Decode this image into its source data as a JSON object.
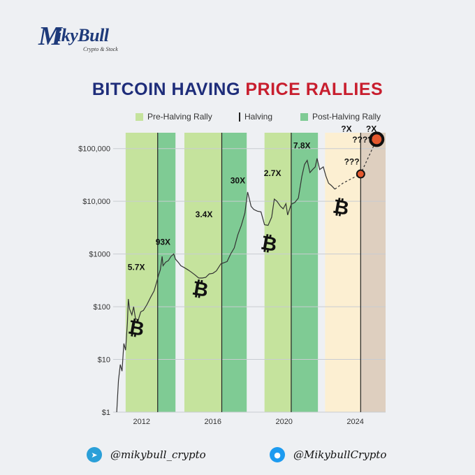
{
  "brand": {
    "name": "MikyBull",
    "tagline": "Crypto & Stock"
  },
  "title_part1": "BITCOIN HAVING",
  "title_part2": "PRICE RALLIES",
  "legend": {
    "pre": "Pre-Halving Rally",
    "halving": "Halving",
    "post": "Post-Halving Rally"
  },
  "colors": {
    "pre": "#c5e39d",
    "post": "#7fcb94",
    "future_pre": "#fcefd2",
    "future_post": "#decfbf",
    "halving_line": "#222222",
    "price_line": "#333333",
    "marker": "#e4582e"
  },
  "footer": {
    "telegram_icon": "telegram-icon",
    "telegram": "@mikybull_crypto",
    "twitter_icon": "twitter-icon",
    "twitter": "@MikybullCrypto"
  },
  "chart_data": {
    "type": "line",
    "title": "BITCOIN HAVING PRICE RALLIES",
    "y_scale": "log",
    "ylim": [
      1,
      200000
    ],
    "xlim": [
      2010.4,
      2025.7
    ],
    "y_ticks": [
      {
        "value": 1,
        "label": "$1"
      },
      {
        "value": 10,
        "label": "$10"
      },
      {
        "value": 100,
        "label": "$100"
      },
      {
        "value": 1000,
        "label": "$1000"
      },
      {
        "value": 10000,
        "label": "$10,000"
      },
      {
        "value": 100000,
        "label": "$100,000"
      }
    ],
    "x_ticks": [
      {
        "value": 2012,
        "label": "2012"
      },
      {
        "value": 2016,
        "label": "2016"
      },
      {
        "value": 2020,
        "label": "2020"
      },
      {
        "value": 2024,
        "label": "2024"
      }
    ],
    "grid": true,
    "halvings": [
      2012.9,
      2016.5,
      2020.4,
      2024.3
    ],
    "bands": [
      {
        "kind": "pre",
        "x0": 2011.1,
        "x1": 2012.9
      },
      {
        "kind": "post",
        "x0": 2012.9,
        "x1": 2013.9
      },
      {
        "kind": "pre",
        "x0": 2014.4,
        "x1": 2016.5
      },
      {
        "kind": "post",
        "x0": 2016.5,
        "x1": 2017.9
      },
      {
        "kind": "pre",
        "x0": 2018.9,
        "x1": 2020.4
      },
      {
        "kind": "post",
        "x0": 2020.4,
        "x1": 2021.9
      },
      {
        "kind": "future_pre",
        "x0": 2022.3,
        "x1": 2024.3
      },
      {
        "kind": "future_post",
        "x0": 2024.3,
        "x1": 2025.7
      }
    ],
    "series": [
      {
        "points": [
          [
            2010.6,
            1
          ],
          [
            2010.7,
            4
          ],
          [
            2010.8,
            8
          ],
          [
            2010.9,
            6
          ],
          [
            2011.0,
            20
          ],
          [
            2011.1,
            15
          ],
          [
            2011.2,
            50
          ],
          [
            2011.25,
            140
          ],
          [
            2011.32,
            90
          ],
          [
            2011.45,
            70
          ],
          [
            2011.55,
            100
          ],
          [
            2011.65,
            60
          ],
          [
            2011.8,
            55
          ],
          [
            2011.95,
            80
          ],
          [
            2012.1,
            85
          ],
          [
            2012.3,
            110
          ],
          [
            2012.5,
            150
          ],
          [
            2012.7,
            200
          ],
          [
            2012.85,
            300
          ],
          [
            2012.95,
            400
          ],
          [
            2013.05,
            500
          ],
          [
            2013.15,
            900
          ],
          [
            2013.2,
            600
          ],
          [
            2013.35,
            700
          ],
          [
            2013.5,
            750
          ],
          [
            2013.65,
            900
          ],
          [
            2013.8,
            1000
          ],
          [
            2013.9,
            800
          ],
          [
            2014.05,
            700
          ],
          [
            2014.2,
            600
          ],
          [
            2014.4,
            550
          ],
          [
            2014.6,
            500
          ],
          [
            2014.8,
            450
          ],
          [
            2015.0,
            400
          ],
          [
            2015.2,
            350
          ],
          [
            2015.4,
            350
          ],
          [
            2015.6,
            360
          ],
          [
            2015.8,
            420
          ],
          [
            2016.0,
            430
          ],
          [
            2016.2,
            480
          ],
          [
            2016.45,
            650
          ],
          [
            2016.6,
            680
          ],
          [
            2016.8,
            720
          ],
          [
            2017.0,
            1000
          ],
          [
            2017.2,
            1300
          ],
          [
            2017.4,
            2300
          ],
          [
            2017.6,
            3500
          ],
          [
            2017.8,
            6000
          ],
          [
            2017.95,
            15000
          ],
          [
            2018.05,
            11000
          ],
          [
            2018.15,
            8000
          ],
          [
            2018.3,
            7000
          ],
          [
            2018.5,
            6500
          ],
          [
            2018.7,
            6300
          ],
          [
            2018.9,
            3600
          ],
          [
            2019.1,
            3500
          ],
          [
            2019.3,
            5000
          ],
          [
            2019.45,
            11000
          ],
          [
            2019.6,
            10000
          ],
          [
            2019.8,
            8000
          ],
          [
            2019.95,
            7200
          ],
          [
            2020.1,
            9000
          ],
          [
            2020.2,
            5500
          ],
          [
            2020.3,
            7000
          ],
          [
            2020.4,
            8800
          ],
          [
            2020.6,
            9500
          ],
          [
            2020.8,
            11500
          ],
          [
            2021.0,
            30000
          ],
          [
            2021.15,
            50000
          ],
          [
            2021.3,
            60000
          ],
          [
            2021.45,
            35000
          ],
          [
            2021.6,
            40000
          ],
          [
            2021.75,
            45000
          ],
          [
            2021.85,
            65000
          ],
          [
            2022.0,
            40000
          ],
          [
            2022.2,
            45000
          ],
          [
            2022.35,
            30000
          ],
          [
            2022.5,
            22000
          ],
          [
            2022.65,
            20000
          ],
          [
            2022.85,
            17000
          ]
        ]
      }
    ],
    "projection": [
      [
        2022.85,
        17000
      ],
      [
        2023.3,
        22000
      ],
      [
        2024.3,
        33000
      ],
      [
        2025.2,
        150000
      ]
    ],
    "projection_markers": [
      {
        "x": 2024.3,
        "y": 33000
      },
      {
        "x": 2025.2,
        "y": 150000
      }
    ],
    "annotations": [
      {
        "text": "5.7X",
        "x": 2011.7,
        "y": 500
      },
      {
        "text": "93X",
        "x": 2013.2,
        "y": 1500
      },
      {
        "text": "3.4X",
        "x": 2015.5,
        "y": 5000
      },
      {
        "text": "30X",
        "x": 2017.4,
        "y": 22000
      },
      {
        "text": "2.7X",
        "x": 2019.35,
        "y": 30000
      },
      {
        "text": "7.8X",
        "x": 2021.0,
        "y": 100000
      },
      {
        "text": "???",
        "x": 2023.8,
        "y": 50000
      },
      {
        "text": "????",
        "x": 2024.4,
        "y": 130000
      },
      {
        "text": "?X",
        "x": 2023.5,
        "y": 210000
      },
      {
        "text": "?X",
        "x": 2024.9,
        "y": 210000
      }
    ],
    "bitcoin_icons": [
      {
        "x": 2011.7,
        "y": 40
      },
      {
        "x": 2015.3,
        "y": 220
      },
      {
        "x": 2019.15,
        "y": 1600
      },
      {
        "x": 2023.2,
        "y": 7800
      }
    ]
  }
}
